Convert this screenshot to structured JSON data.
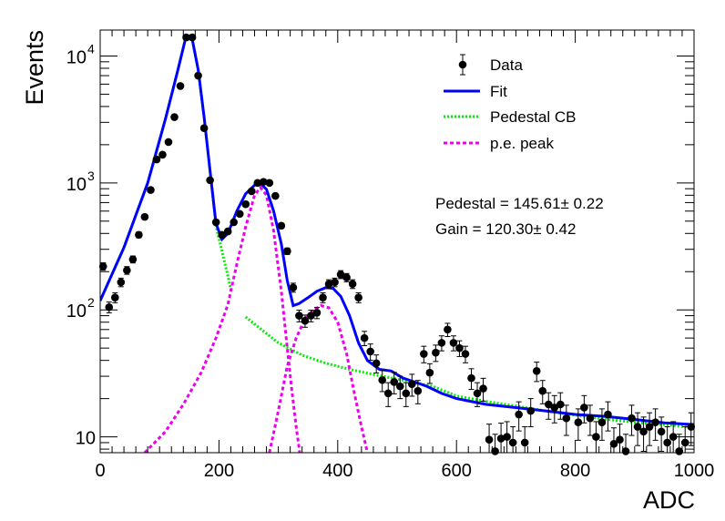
{
  "chart_data": {
    "type": "scatter",
    "title": "",
    "xlabel": "ADC",
    "ylabel": "Events",
    "xlim": [
      0,
      1000
    ],
    "ylim": [
      7.5,
      16000
    ],
    "yscale": "log",
    "grid": false,
    "legend_position": "top-right",
    "x_ticks": [
      "0",
      "200",
      "400",
      "600",
      "800",
      "1000"
    ],
    "y_ticks": [
      {
        "value": 10,
        "base": "10",
        "exp": ""
      },
      {
        "value": 100,
        "base": "10",
        "exp": "2"
      },
      {
        "value": 1000,
        "base": "10",
        "exp": "3"
      },
      {
        "value": 10000,
        "base": "10",
        "exp": "4"
      }
    ],
    "legend": [
      {
        "label": "Data",
        "style": "marker",
        "color": "#000000"
      },
      {
        "label": "Fit",
        "style": "solid",
        "color": "#0000ff"
      },
      {
        "label": "Pedestal CB",
        "style": "dotted",
        "color": "#00ff00"
      },
      {
        "label": "p.e. peak",
        "style": "dotted",
        "color": "#ff00ff"
      }
    ],
    "annotations": {
      "pedestal": "Pedestal = 145.61± 0.22",
      "gain": "Gain = 120.30± 0.42"
    },
    "colors": {
      "data": "#000000",
      "fit": "#0000ff",
      "pedestal": "#00ee00",
      "pe": "#ee00ee"
    },
    "data_points": [
      [
        5,
        220
      ],
      [
        15,
        105
      ],
      [
        25,
        125
      ],
      [
        35,
        165
      ],
      [
        45,
        205
      ],
      [
        55,
        250
      ],
      [
        65,
        390
      ],
      [
        75,
        540
      ],
      [
        85,
        880
      ],
      [
        95,
        1530
      ],
      [
        105,
        1670
      ],
      [
        115,
        2100
      ],
      [
        125,
        3300
      ],
      [
        135,
        5800
      ],
      [
        145,
        14000
      ],
      [
        155,
        14000
      ],
      [
        165,
        7000
      ],
      [
        175,
        2700
      ],
      [
        185,
        1050
      ],
      [
        195,
        490
      ],
      [
        205,
        390
      ],
      [
        215,
        415
      ],
      [
        225,
        490
      ],
      [
        235,
        570
      ],
      [
        245,
        680
      ],
      [
        255,
        860
      ],
      [
        265,
        1000
      ],
      [
        275,
        1020
      ],
      [
        285,
        1000
      ],
      [
        295,
        790
      ],
      [
        305,
        460
      ],
      [
        315,
        290
      ],
      [
        325,
        150
      ],
      [
        335,
        90
      ],
      [
        345,
        82
      ],
      [
        355,
        90
      ],
      [
        365,
        95
      ],
      [
        375,
        125
      ],
      [
        385,
        160
      ],
      [
        395,
        165
      ],
      [
        405,
        190
      ],
      [
        415,
        180
      ],
      [
        425,
        160
      ],
      [
        435,
        125
      ],
      [
        445,
        60
      ],
      [
        455,
        47
      ],
      [
        465,
        38
      ],
      [
        475,
        28
      ],
      [
        485,
        22
      ],
      [
        495,
        27
      ],
      [
        505,
        25
      ],
      [
        515,
        22
      ],
      [
        525,
        26
      ],
      [
        535,
        23
      ],
      [
        545,
        45
      ],
      [
        555,
        32
      ],
      [
        565,
        46
      ],
      [
        575,
        55
      ],
      [
        585,
        70
      ],
      [
        595,
        55
      ],
      [
        605,
        50
      ],
      [
        615,
        45
      ],
      [
        625,
        29
      ],
      [
        635,
        22
      ],
      [
        645,
        24
      ],
      [
        655,
        9.5
      ],
      [
        665,
        7.7
      ],
      [
        675,
        9.7
      ],
      [
        685,
        10
      ],
      [
        695,
        9
      ],
      [
        705,
        15
      ],
      [
        715,
        9
      ],
      [
        725,
        16
      ],
      [
        735,
        33
      ],
      [
        745,
        23
      ],
      [
        755,
        18
      ],
      [
        765,
        17
      ],
      [
        775,
        18
      ],
      [
        785,
        14
      ],
      [
        805,
        13
      ],
      [
        815,
        17
      ],
      [
        825,
        14
      ],
      [
        835,
        10
      ],
      [
        845,
        13
      ],
      [
        855,
        15
      ],
      [
        865,
        8.8
      ],
      [
        875,
        9.5
      ],
      [
        885,
        7.7
      ],
      [
        895,
        14
      ],
      [
        905,
        12
      ],
      [
        915,
        11
      ],
      [
        925,
        12
      ],
      [
        935,
        13
      ],
      [
        945,
        11
      ],
      [
        955,
        9
      ],
      [
        965,
        10
      ],
      [
        975,
        7.7
      ],
      [
        985,
        9
      ],
      [
        995,
        12
      ]
    ],
    "fit_curve": [
      [
        0,
        118
      ],
      [
        40,
        310
      ],
      [
        80,
        1000
      ],
      [
        110,
        3200
      ],
      [
        130,
        7500
      ],
      [
        145,
        14500
      ],
      [
        155,
        13500
      ],
      [
        165,
        7800
      ],
      [
        175,
        3300
      ],
      [
        185,
        1250
      ],
      [
        195,
        480
      ],
      [
        205,
        360
      ],
      [
        215,
        400
      ],
      [
        230,
        600
      ],
      [
        245,
        820
      ],
      [
        260,
        960
      ],
      [
        270,
        990
      ],
      [
        280,
        890
      ],
      [
        292,
        600
      ],
      [
        305,
        330
      ],
      [
        315,
        170
      ],
      [
        325,
        108
      ],
      [
        335,
        112
      ],
      [
        350,
        125
      ],
      [
        365,
        140
      ],
      [
        380,
        150
      ],
      [
        392,
        148
      ],
      [
        405,
        128
      ],
      [
        420,
        90
      ],
      [
        435,
        55
      ],
      [
        450,
        40
      ],
      [
        470,
        34
      ],
      [
        490,
        33
      ],
      [
        510,
        29
      ],
      [
        530,
        27
      ],
      [
        550,
        25
      ],
      [
        575,
        22
      ],
      [
        600,
        20
      ],
      [
        650,
        18
      ],
      [
        700,
        17
      ],
      [
        750,
        16
      ],
      [
        800,
        15
      ],
      [
        850,
        14.5
      ],
      [
        900,
        13.7
      ],
      [
        950,
        12.9
      ],
      [
        1000,
        12.5
      ]
    ],
    "pedestal_curve_segments": [
      [
        [
          0,
          118
        ],
        [
          40,
          310
        ],
        [
          80,
          1000
        ],
        [
          110,
          3200
        ],
        [
          130,
          7500
        ],
        [
          145,
          14500
        ],
        [
          155,
          13500
        ],
        [
          165,
          7800
        ],
        [
          175,
          3300
        ],
        [
          185,
          1250
        ],
        [
          195,
          460
        ],
        [
          205,
          290
        ],
        [
          215,
          185
        ],
        [
          220,
          145
        ]
      ],
      [
        [
          245,
          88
        ],
        [
          275,
          68
        ],
        [
          300,
          55
        ],
        [
          340,
          44
        ],
        [
          380,
          38
        ],
        [
          420,
          34
        ],
        [
          460,
          31
        ],
        [
          500,
          28.5
        ],
        [
          560,
          25
        ],
        [
          600,
          21
        ],
        [
          650,
          19
        ],
        [
          700,
          17.5
        ],
        [
          750,
          16
        ],
        [
          800,
          14.8
        ],
        [
          850,
          13.8
        ],
        [
          900,
          13
        ],
        [
          950,
          12.5
        ],
        [
          1000,
          11.8
        ]
      ]
    ],
    "pe_curve_segments": [
      [
        [
          75,
          7.5
        ],
        [
          110,
          11
        ],
        [
          140,
          18
        ],
        [
          170,
          32
        ],
        [
          195,
          60
        ],
        [
          215,
          110
        ],
        [
          230,
          230
        ],
        [
          245,
          450
        ],
        [
          260,
          800
        ],
        [
          270,
          920
        ],
        [
          280,
          800
        ],
        [
          292,
          420
        ],
        [
          305,
          140
        ],
        [
          315,
          50
        ],
        [
          322,
          25
        ],
        [
          330,
          12
        ],
        [
          336,
          7.5
        ]
      ],
      [
        [
          285,
          7.5
        ],
        [
          300,
          16
        ],
        [
          315,
          36
        ],
        [
          330,
          60
        ],
        [
          345,
          85
        ],
        [
          360,
          100
        ],
        [
          372,
          108
        ],
        [
          385,
          104
        ],
        [
          400,
          80
        ],
        [
          415,
          45
        ],
        [
          428,
          22
        ],
        [
          440,
          12
        ],
        [
          450,
          7.5
        ]
      ]
    ]
  }
}
